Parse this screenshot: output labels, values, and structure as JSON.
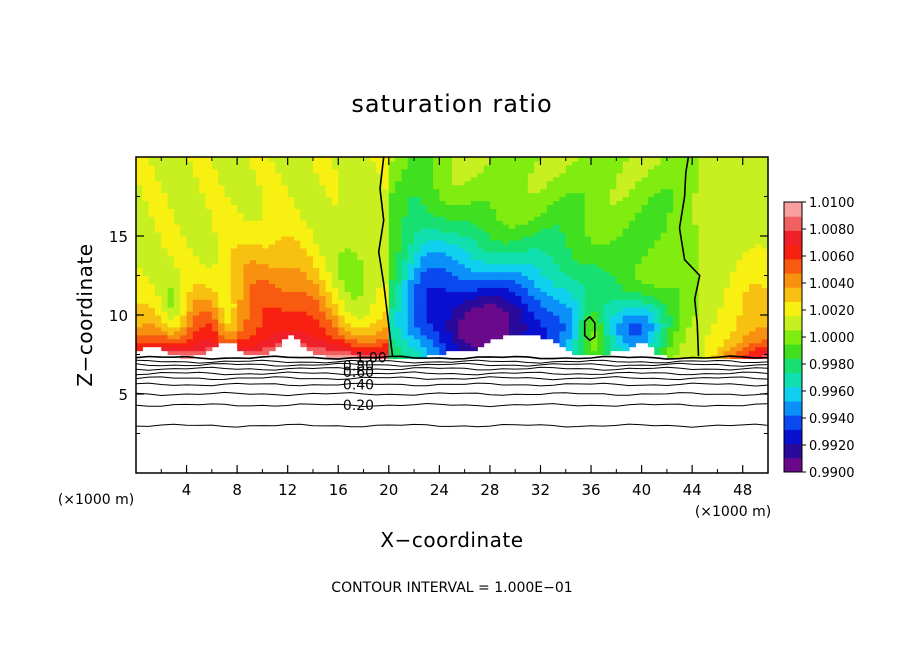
{
  "chart_data": {
    "type": "heatmap",
    "title": "saturation ratio",
    "xlabel": "X−coordinate",
    "ylabel": "Z−coordinate",
    "x_unit": "(×1000 m)",
    "footer": "CONTOUR INTERVAL = 1.000E−01",
    "xlim": [
      0,
      50
    ],
    "ylim": [
      0,
      20
    ],
    "x_ticks": [
      4,
      8,
      12,
      16,
      20,
      24,
      28,
      32,
      36,
      40,
      44,
      48
    ],
    "y_ticks": [
      5,
      10,
      15
    ],
    "colorbar": {
      "labels": [
        "1.0100",
        "1.0080",
        "1.0060",
        "1.0040",
        "1.0020",
        "1.0000",
        "0.9980",
        "0.9960",
        "0.9940",
        "0.9920",
        "0.9900"
      ],
      "range": [
        0.99,
        1.01
      ],
      "colors": [
        "#6a0a8a",
        "#2a0a9a",
        "#0a10d0",
        "#0a48f0",
        "#0a90f8",
        "#10d0f0",
        "#10e0b0",
        "#18e070",
        "#40e020",
        "#80ec10",
        "#c8f020",
        "#f8f010",
        "#f8c010",
        "#f89010",
        "#f85a10",
        "#f82010",
        "#f0202a",
        "#f06060",
        "#f8a0a0"
      ]
    },
    "contour_labels": [
      {
        "text": "1.00",
        "x": 18.6,
        "y": 7.3
      },
      {
        "text": "0.80",
        "x": 17.6,
        "y": 6.8
      },
      {
        "text": "0.60",
        "x": 17.6,
        "y": 6.4
      },
      {
        "text": "0.40",
        "x": 17.6,
        "y": 5.6
      },
      {
        "text": "0.20",
        "x": 17.6,
        "y": 4.3
      }
    ],
    "contour_levels_z": [
      7.3,
      7.05,
      6.85,
      6.6,
      6.3,
      6.0,
      5.6,
      5.0,
      4.3,
      3.0
    ],
    "unity_contour": [
      [
        [
          19.6,
          20
        ],
        [
          19.3,
          18
        ],
        [
          19.6,
          16
        ],
        [
          19.2,
          14
        ],
        [
          19.6,
          12
        ],
        [
          19.9,
          10
        ],
        [
          20.2,
          8
        ],
        [
          20.3,
          7.4
        ]
      ],
      [
        [
          43.7,
          20
        ],
        [
          43.5,
          19
        ],
        [
          43.4,
          17.5
        ],
        [
          43.0,
          15.5
        ],
        [
          43.4,
          13.5
        ],
        [
          44.6,
          12.5
        ],
        [
          44.2,
          11.0
        ],
        [
          44.4,
          9.5
        ],
        [
          44.5,
          7.4
        ]
      ],
      [
        [
          35.9,
          9.9
        ],
        [
          36.3,
          9.5
        ],
        [
          36.3,
          8.6
        ],
        [
          35.9,
          8.4
        ],
        [
          35.5,
          8.7
        ],
        [
          35.5,
          9.6
        ],
        [
          35.9,
          9.9
        ]
      ]
    ]
  }
}
